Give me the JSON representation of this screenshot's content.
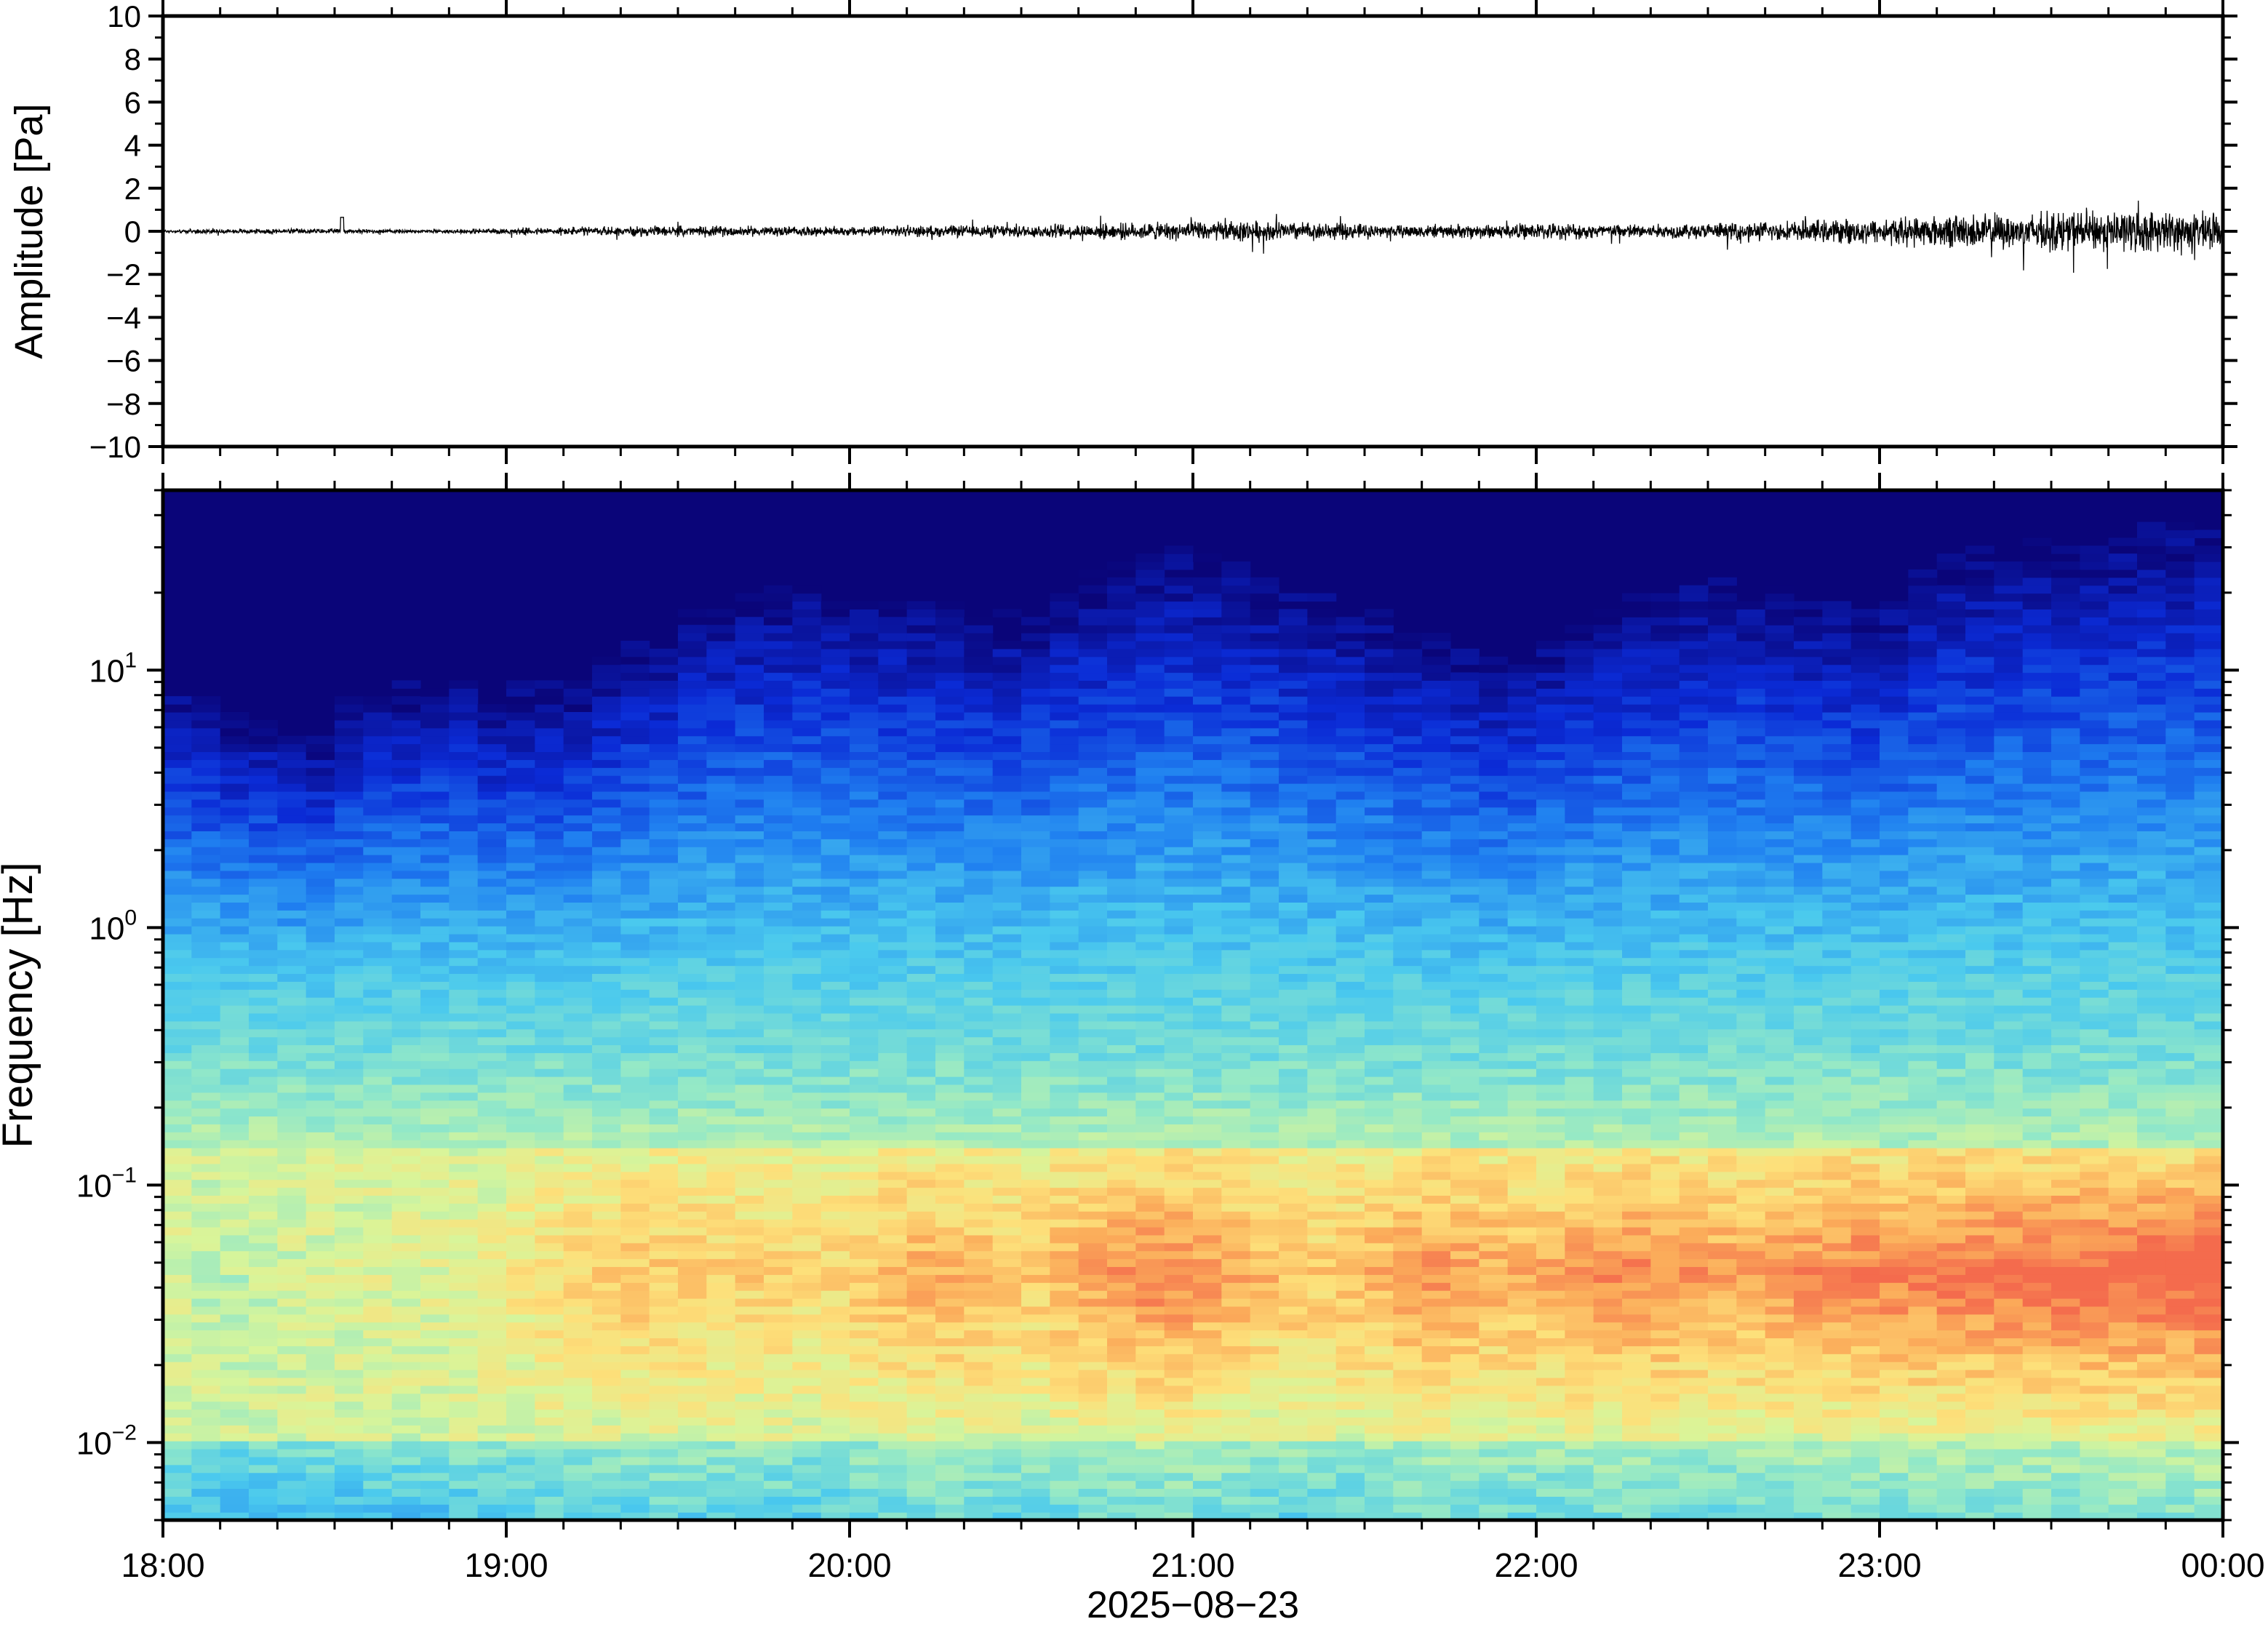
{
  "chart_data": [
    {
      "type": "line",
      "panel": "waveform",
      "ylabel": "Amplitude [Pa]",
      "ylim": [
        -10,
        10
      ],
      "yticks": [
        10,
        8,
        6,
        4,
        2,
        0,
        -2,
        -4,
        -6,
        -8,
        -10
      ],
      "ytick_labels": [
        "10",
        "8",
        "6",
        "4",
        "2",
        "0",
        "−2",
        "−4",
        "−6",
        "−8",
        "−10"
      ],
      "xlim": [
        "18:00",
        "00:00"
      ],
      "line_color": "#000000",
      "series": [
        {
          "x": [
            "18:00",
            "18:30",
            "19:00",
            "19:30",
            "20:00",
            "20:30",
            "21:00",
            "21:20",
            "21:30",
            "22:00",
            "22:30",
            "23:00",
            "23:15",
            "23:30",
            "23:45",
            "00:00"
          ],
          "envelope": [
            0.1,
            0.15,
            0.1,
            0.25,
            0.3,
            0.25,
            0.35,
            0.45,
            0.6,
            0.35,
            0.45,
            0.4,
            0.6,
            0.9,
            1.2,
            1.0
          ]
        }
      ],
      "grid": false
    },
    {
      "type": "heatmap",
      "panel": "spectrogram",
      "ylabel": "Frequency [Hz]",
      "xlabel": "2025−08−23",
      "yscale": "log",
      "ylim": [
        0.005,
        50
      ],
      "yticks": [
        0.01,
        0.1,
        1,
        10
      ],
      "ytick_labels": [
        {
          "base": "10",
          "exp": "−2"
        },
        {
          "base": "10",
          "exp": "−1"
        },
        {
          "base": "10",
          "exp": "0"
        },
        {
          "base": "10",
          "exp": "1"
        }
      ],
      "xticks": [
        "18:00",
        "19:00",
        "20:00",
        "21:00",
        "22:00",
        "23:00",
        "00:00"
      ],
      "colormap": [
        "#0a0579",
        "#0b2bd6",
        "#1f7ff0",
        "#4ac9ee",
        "#92e8c8",
        "#d8f59a",
        "#fde07a",
        "#fbac5a",
        "#f46b4d"
      ],
      "columns": 72,
      "upper_cutoff_hz": [
        9,
        8,
        7,
        7,
        6,
        6,
        8,
        9,
        9,
        10,
        10,
        8,
        9,
        9,
        9,
        11,
        13,
        14,
        17,
        19,
        21,
        22,
        22,
        21,
        20,
        20,
        19,
        18,
        17,
        17,
        18,
        21,
        24,
        26,
        28,
        30,
        28,
        27,
        24,
        22,
        20,
        18,
        17,
        15,
        14,
        13,
        12,
        12,
        14,
        16,
        18,
        20,
        21,
        23,
        23,
        22,
        21,
        20,
        19,
        18,
        20,
        24,
        28,
        30,
        31,
        32,
        33,
        34,
        36,
        37,
        38,
        38
      ],
      "low_band_intensity": [
        0.45,
        0.42,
        0.4,
        0.42,
        0.44,
        0.46,
        0.46,
        0.48,
        0.47,
        0.48,
        0.5,
        0.52,
        0.55,
        0.6,
        0.62,
        0.64,
        0.66,
        0.66,
        0.65,
        0.64,
        0.64,
        0.62,
        0.6,
        0.62,
        0.66,
        0.7,
        0.72,
        0.72,
        0.7,
        0.68,
        0.66,
        0.72,
        0.76,
        0.8,
        0.82,
        0.82,
        0.78,
        0.74,
        0.7,
        0.68,
        0.66,
        0.68,
        0.72,
        0.76,
        0.78,
        0.76,
        0.74,
        0.72,
        0.74,
        0.78,
        0.8,
        0.82,
        0.8,
        0.78,
        0.76,
        0.76,
        0.78,
        0.8,
        0.82,
        0.84,
        0.84,
        0.84,
        0.86,
        0.86,
        0.88,
        0.88,
        0.88,
        0.9,
        0.9,
        0.92,
        0.92,
        0.94
      ],
      "grid": false
    }
  ]
}
